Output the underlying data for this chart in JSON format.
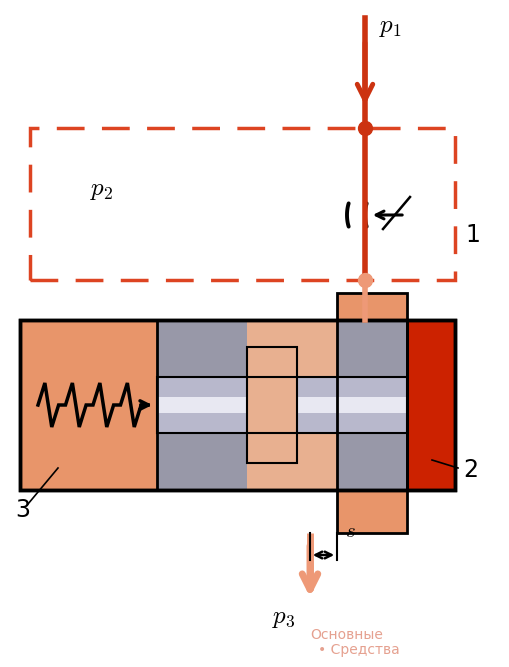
{
  "bg": "#ffffff",
  "col_orange_left": "#e8956a",
  "col_orange_dark": "#cc2200",
  "col_gray": "#9898a8",
  "col_pink": "#e8b090",
  "col_shaft": "#b8b8cc",
  "col_shaft_hi": "#e8e8f2",
  "col_dash": "#dd4422",
  "col_red": "#cc3311",
  "col_salmon": "#ee9977",
  "p1": "$p_1$",
  "p2": "$p_2$",
  "p3": "$p_3$",
  "s": "$s$",
  "lbl1": "1",
  "lbl2": "2",
  "lbl3": "3",
  "wm1": "Основные",
  "wm2": "• Средства"
}
